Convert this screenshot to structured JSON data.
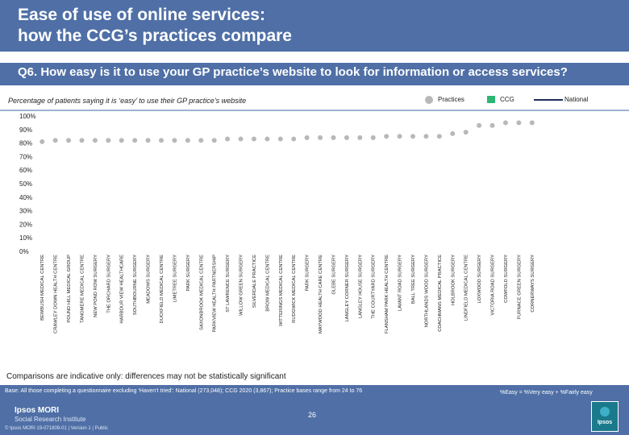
{
  "header": {
    "title": "Ease of use of online services:\nhow the CCG’s practices compare",
    "question": "Q6. How easy is it to use your GP practice’s website to look for information or access services?"
  },
  "subtitle": "Percentage of patients saying it is ‘easy’ to use their GP practice’s website",
  "legend": {
    "practices": "Practices",
    "ccg": "CCG",
    "national": "National"
  },
  "colors": {
    "bar": "#4f6fa6",
    "practice": "#b8b8b8",
    "ccg": "#2bb673",
    "national": "#1f2f5a"
  },
  "chart_data": {
    "type": "scatter",
    "y_ticks": [
      "0%",
      "10%",
      "20%",
      "30%",
      "40%",
      "50%",
      "60%",
      "70%",
      "80%",
      "90%",
      "100%"
    ],
    "ylim": [
      0,
      100
    ],
    "categories": [
      "BEWBUSH MEDICAL CENTRE",
      "CRAWLEY DOWN HEALTH CENTRE",
      "POUND HILL MEDICAL GROUP",
      "TANGMERE MEDICAL CENTRE",
      "NEW POND ROW SURGERY",
      "THE ORCHARD SURGERY",
      "HARBOUR VIEW HEALTHCARE",
      "SOUTHBOURNE SURGERY",
      "MEADOWS SURGERY",
      "DUCKFIELD MEDICAL CENTRE",
      "LIMETREE SURGERY",
      "PARK SURGERY",
      "SAXONBROOK MEDICAL CENTRE",
      "PARKVIEW HEALTH PARTNERSHIP",
      "ST LAWRENCE SURGERY",
      "WILLOW GREEN SURGERY",
      "SILVERDALE PRACTICE",
      "BROW MEDICAL CENTRE",
      "WITTERINGS MEDICAL CENTRE",
      "RUDGWICK MEDICAL CENTRE",
      "PARK SURGERY",
      "MAYWOOD HEALTH CARE CENTRE",
      "GLEBE SURGERY",
      "LANGLEY CORNER SURGERY",
      "LANGLEY HOUSE SURGERY",
      "THE COURTYARD SURGERY",
      "FLANSHAM PARK HEALTH CENTRE",
      "LAVANT ROAD SURGERY",
      "BALL TREE SURGERY",
      "NORTHLANDS WOOD SURGERY",
      "COACHMANS MEDICAL PRACTICE",
      "HOLBROOK SURGERY",
      "LINDFIELD MEDICAL CENTRE",
      "LOXWOOD SURGERY",
      "VICTORIA ROAD SURGERY",
      "COWFOLD SURGERY",
      "FURNACE GREEN SURGERY",
      "CORNERWAYS SURGERY"
    ],
    "values": [
      81,
      82,
      82,
      82,
      82,
      82,
      82,
      82,
      82,
      82,
      82,
      82,
      82,
      82,
      83,
      83,
      83,
      83,
      83,
      83,
      84,
      84,
      84,
      84,
      84,
      84,
      85,
      85,
      85,
      85,
      85,
      87,
      88,
      93,
      93,
      95,
      95,
      95
    ],
    "title": "",
    "xlabel": "",
    "ylabel": ""
  },
  "note": "Comparisons are indicative only: differences may not be statistically significant",
  "footer": {
    "base": "Base: All those completing a questionnaire excluding ‘Haven’t tried’: National (273,048); CCG 2020 (3,867); Practice bases range from 24 to 76",
    "formula": "%Easy = %Very easy + %Fairly easy",
    "page": "26",
    "logo_line1": "Ipsos MORI",
    "logo_line2": "Social Research Institute",
    "copyright": "© Ipsos MORI     19-071809-01 | Version 1 | Public",
    "brand": "Ipsos"
  }
}
